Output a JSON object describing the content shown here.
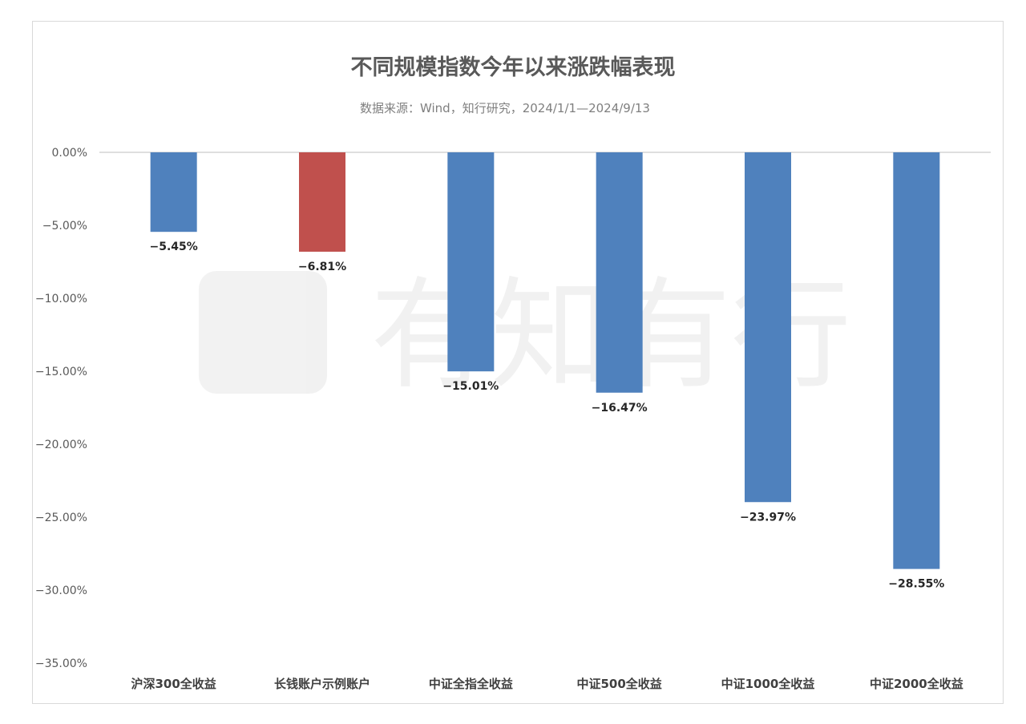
{
  "chart_data": {
    "type": "bar",
    "title": "不同规模指数今年以来涨跌幅表现",
    "subtitle": "数据来源：Wind，知行研究，2024/1/1—2024/9/13",
    "categories": [
      "沪深300全收益",
      "长钱账户示例账户",
      "中证全指全收益",
      "中证500全收益",
      "中证1000全收益",
      "中证2000全收益"
    ],
    "values": [
      -5.45,
      -6.81,
      -15.01,
      -16.47,
      -23.97,
      -28.55
    ],
    "data_labels": [
      "−5.45%",
      "−6.81%",
      "−15.01%",
      "−16.47%",
      "−23.97%",
      "−28.55%"
    ],
    "bar_colors": [
      "#4f81bd",
      "#c0504d",
      "#4f81bd",
      "#4f81bd",
      "#4f81bd",
      "#4f81bd"
    ],
    "yticks": [
      0,
      -5,
      -10,
      -15,
      -20,
      -25,
      -30,
      -35
    ],
    "ytick_labels": [
      "0.00%",
      "−5.00%",
      "−10.00%",
      "−15.00%",
      "−20.00%",
      "−25.00%",
      "−30.00%",
      "−35.00%"
    ],
    "ylim": [
      -35,
      0
    ],
    "xlabel": "",
    "ylabel": "",
    "grid": false,
    "legend": "none",
    "watermark_text": "有知有行"
  }
}
